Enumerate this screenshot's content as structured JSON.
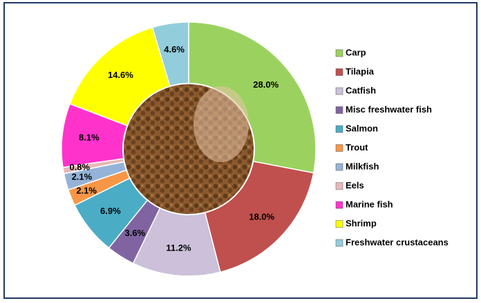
{
  "chart_data": {
    "type": "donut",
    "categories": [
      "Carp",
      "Tilapia",
      "Catfish",
      "Misc freshwater fish",
      "Salmon",
      "Trout",
      "Milkfish",
      "Eels",
      "Marine fish",
      "Shrimp",
      "Freshwater crustaceans"
    ],
    "values": [
      28.0,
      18.0,
      11.2,
      3.6,
      6.9,
      2.1,
      2.1,
      0.8,
      8.1,
      14.6,
      4.6
    ],
    "value_labels": [
      "28.0%",
      "18.0%",
      "11.2%",
      "3.6%",
      "6.9%",
      "2.1%",
      "2.1%",
      "0.8%",
      "8.1%",
      "14.6%",
      "4.6%"
    ],
    "colors": [
      "#9bd25f",
      "#c0504d",
      "#ccc0da",
      "#8064a2",
      "#4bacc6",
      "#f79646",
      "#95b3d7",
      "#e6b9b8",
      "#ff33cc",
      "#ffff00",
      "#92cddc"
    ],
    "legend": "right"
  }
}
